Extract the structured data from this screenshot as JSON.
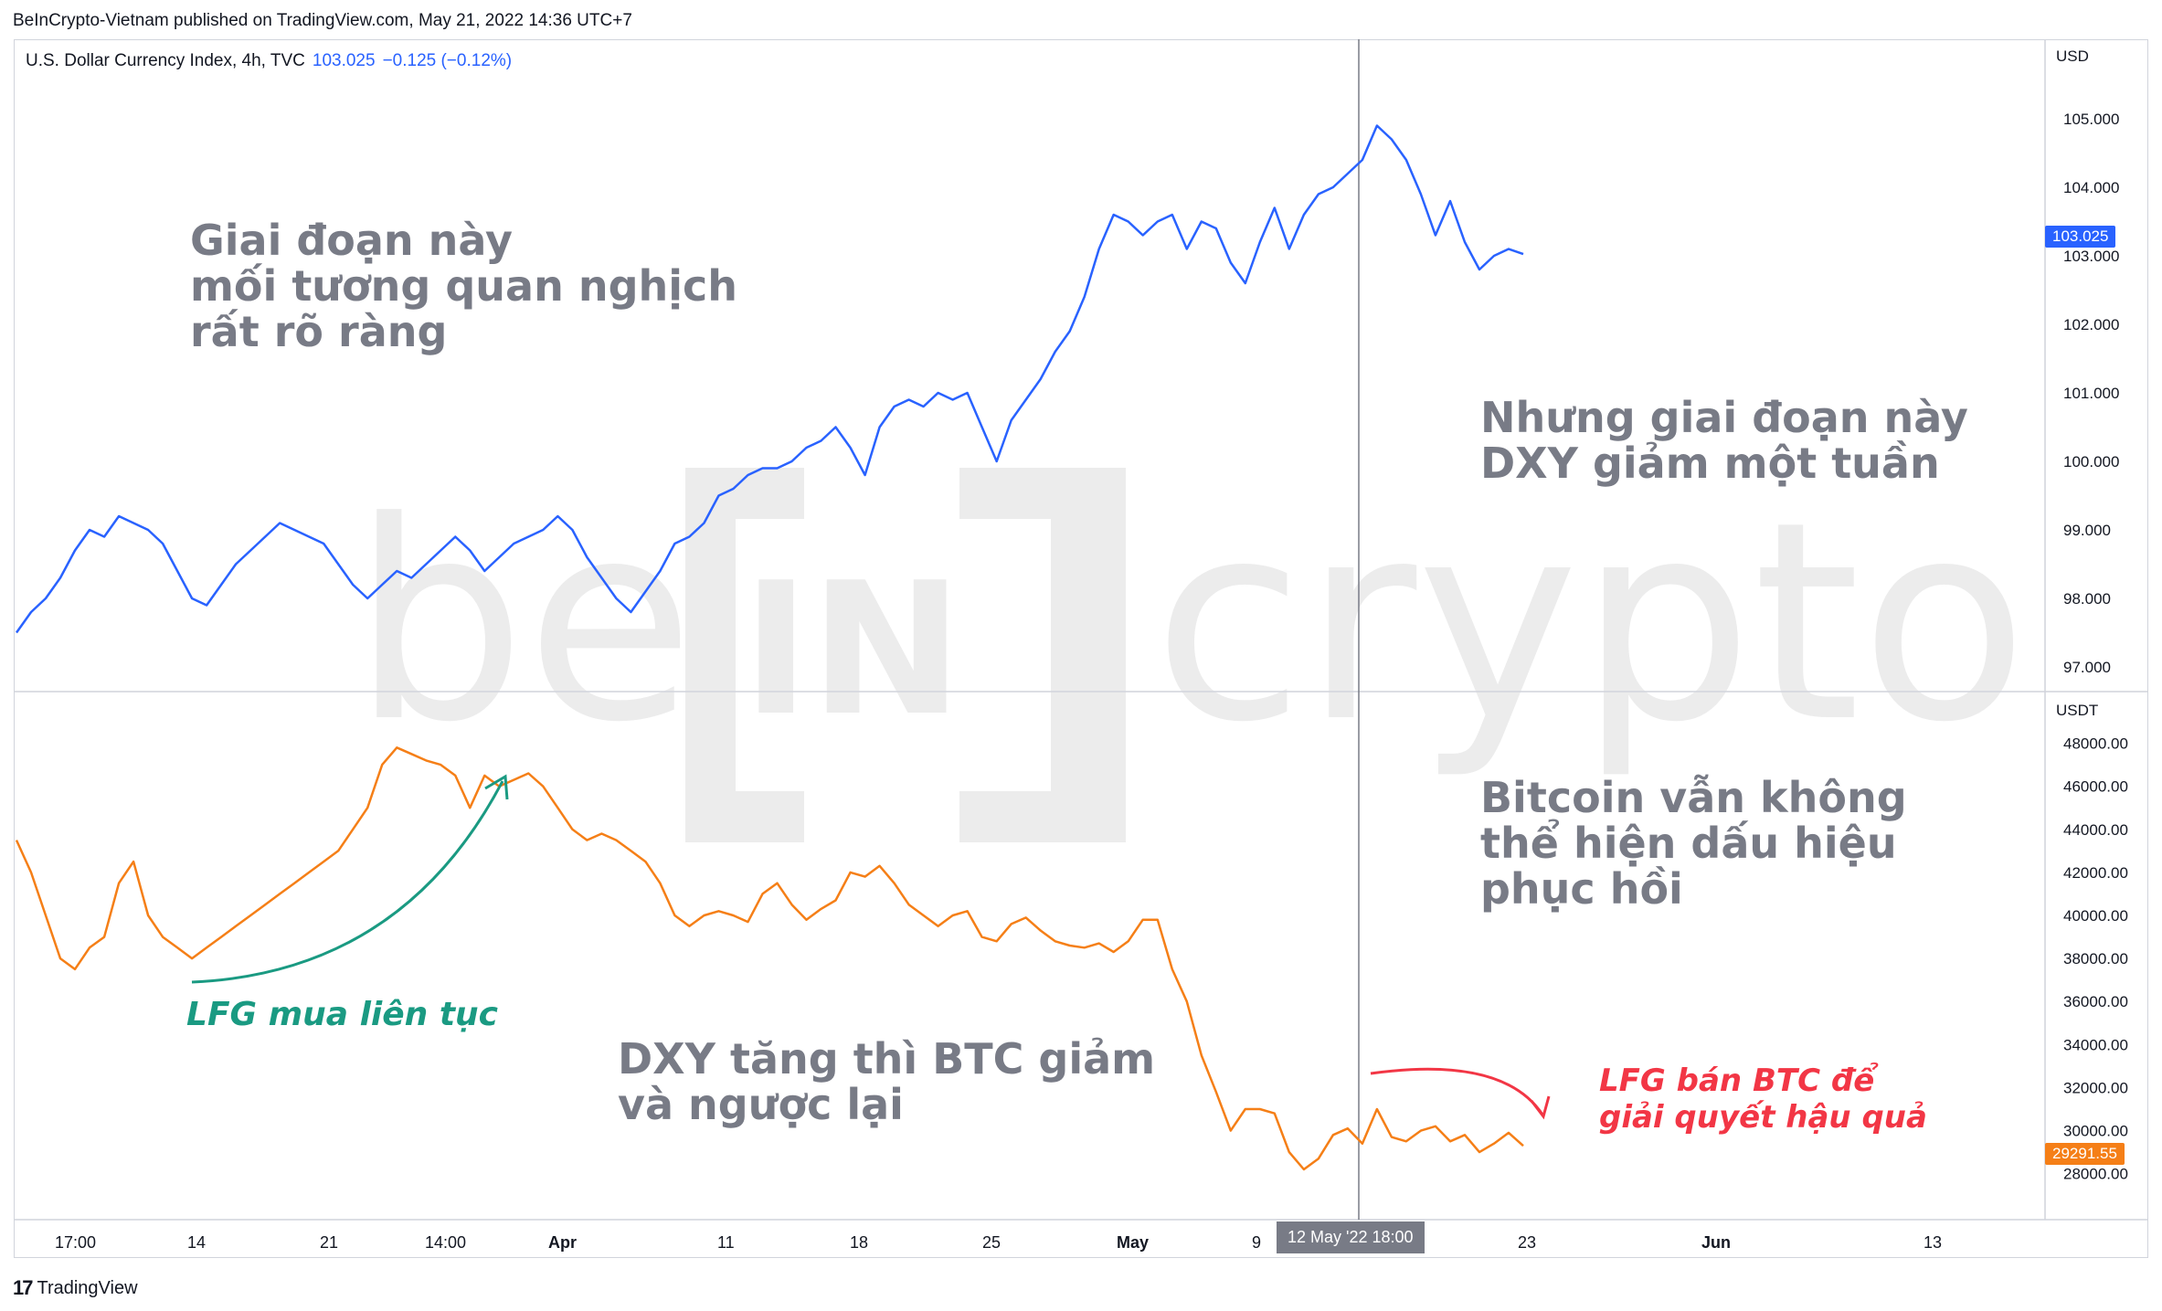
{
  "header": {
    "published_line": "BeInCrypto-Vietnam published on TradingView.com, May 21, 2022 14:36 UTC+7"
  },
  "legend": {
    "symbol": "U.S. Dollar Currency Index, 4h, TVC",
    "last_value": "103.025",
    "change": "−0.125 (−0.12%)"
  },
  "watermark": {
    "brand_left": "be",
    "brand_mid": "IN",
    "brand_right": "crypto",
    "color": "#ececec"
  },
  "annotations": {
    "top_left": "Giai đoạn này\nmối tương quan nghịch\nrất rõ ràng",
    "top_right": "Nhưng giai đoạn này\nDXY giảm một tuần",
    "bottom_right": "Bitcoin vẫn không\nthể hiện dấu hiệu\nphục hồi",
    "middle": "DXY tăng thì BTC giảm\nvà ngược lại",
    "green": "LFG mua liên tục",
    "red": "LFG bán BTC để\ngiải quyết hậu quả"
  },
  "colors": {
    "dxy": "#2962ff",
    "btc": "#f57f17",
    "green_annotation": "#1a9a82",
    "red_annotation": "#f23645",
    "gray_text": "#787b86",
    "grid_border": "#d1d4dc"
  },
  "crosshair": {
    "time_label": "12 May '22   18:00"
  },
  "footer": {
    "brand": "TradingView",
    "logo_icon": "tradingview-logo-icon"
  },
  "chart_data": [
    {
      "type": "line",
      "pane": "top",
      "series": [
        {
          "name": "U.S. Dollar Currency Index, 4h, TVC",
          "values": [
            97.5,
            97.8,
            98.0,
            98.3,
            98.7,
            99.0,
            98.9,
            99.2,
            99.1,
            99.0,
            98.8,
            98.4,
            98.0,
            97.9,
            98.2,
            98.5,
            98.7,
            98.9,
            99.1,
            99.0,
            98.9,
            98.8,
            98.5,
            98.2,
            98.0,
            98.2,
            98.4,
            98.3,
            98.5,
            98.7,
            98.9,
            98.7,
            98.4,
            98.6,
            98.8,
            98.9,
            99.0,
            99.2,
            99.0,
            98.6,
            98.3,
            98.0,
            97.8,
            98.1,
            98.4,
            98.8,
            98.9,
            99.1,
            99.5,
            99.6,
            99.8,
            99.9,
            99.9,
            100.0,
            100.2,
            100.3,
            100.5,
            100.2,
            99.8,
            100.5,
            100.8,
            100.9,
            100.8,
            101.0,
            100.9,
            101.0,
            100.5,
            100.0,
            100.6,
            100.9,
            101.2,
            101.6,
            101.9,
            102.4,
            103.1,
            103.6,
            103.5,
            103.3,
            103.5,
            103.6,
            103.1,
            103.5,
            103.4,
            102.9,
            102.6,
            103.2,
            103.7,
            103.1,
            103.6,
            103.9,
            104.0,
            104.2,
            104.4,
            104.9,
            104.7,
            104.4,
            103.9,
            103.3,
            103.8,
            103.2,
            102.8,
            103.0,
            103.1,
            103.025
          ],
          "last_label": "103.025"
        }
      ],
      "y_unit": "USD",
      "y_ticks": [
        "105.000",
        "104.000",
        "103.000",
        "102.000",
        "101.000",
        "100.000",
        "99.000",
        "98.000",
        "97.000"
      ],
      "ylim": [
        96.8,
        105.4
      ]
    },
    {
      "type": "line",
      "pane": "bottom",
      "series": [
        {
          "name": "BTC",
          "values": [
            43500,
            42000,
            40000,
            38000,
            37500,
            38500,
            39000,
            41500,
            42500,
            40000,
            39000,
            38500,
            38000,
            38500,
            39000,
            39500,
            40000,
            40500,
            41000,
            41500,
            42000,
            42500,
            43000,
            44000,
            45000,
            47000,
            47800,
            47500,
            47200,
            47000,
            46500,
            45000,
            46500,
            46000,
            46300,
            46600,
            46000,
            45000,
            44000,
            43500,
            43800,
            43500,
            43000,
            42500,
            41500,
            40000,
            39500,
            40000,
            40200,
            40000,
            39700,
            41000,
            41500,
            40500,
            39800,
            40300,
            40700,
            42000,
            41800,
            42300,
            41500,
            40500,
            40000,
            39500,
            40000,
            40200,
            39000,
            38800,
            39600,
            39900,
            39300,
            38800,
            38600,
            38500,
            38700,
            38300,
            38800,
            39800,
            39800,
            37500,
            36000,
            33500,
            31800,
            30000,
            31000,
            31000,
            30800,
            29000,
            28200,
            28700,
            29800,
            30100,
            29400,
            31000,
            29700,
            29500,
            30000,
            30200,
            29500,
            29800,
            29000,
            29400,
            29900,
            29291.55
          ],
          "last_label": "29291.55"
        }
      ],
      "y_unit": "USDT",
      "y_ticks": [
        "48000.00",
        "46000.00",
        "44000.00",
        "42000.00",
        "40000.00",
        "38000.00",
        "36000.00",
        "34000.00",
        "32000.00",
        "30000.00",
        "28000.00"
      ],
      "ylim": [
        26500,
        49000
      ],
      "x_tick_labels": [
        "17:00",
        "14",
        "21",
        "14:00",
        "Apr",
        "11",
        "18",
        "25",
        "May",
        "9",
        "23",
        "Jun",
        "13"
      ]
    }
  ]
}
